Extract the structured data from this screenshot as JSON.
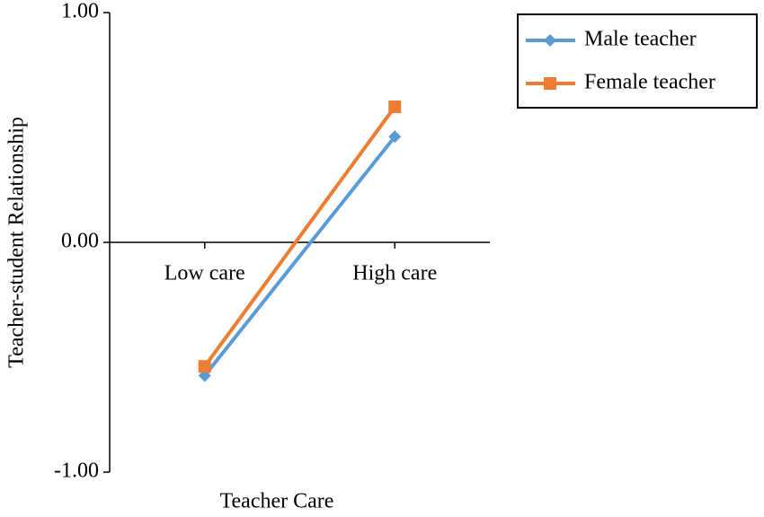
{
  "chart_data": {
    "type": "line",
    "x_label": "Teacher Care",
    "y_label": "Teacher-student Relationship",
    "categories": [
      "Low care",
      "High care"
    ],
    "series": [
      {
        "name": "Male teacher",
        "color": "#5b9bd5",
        "marker": "diamond",
        "values": [
          -0.58,
          0.46
        ]
      },
      {
        "name": "Female teacher",
        "color": "#ed7d31",
        "marker": "square",
        "values": [
          -0.54,
          0.59
        ]
      }
    ],
    "ylim": [
      -1,
      1
    ],
    "yticks": [
      {
        "value": -1,
        "label": "-1.00"
      },
      {
        "value": 0,
        "label": "0.00"
      },
      {
        "value": 1,
        "label": "1.00"
      }
    ],
    "legend": "right"
  }
}
